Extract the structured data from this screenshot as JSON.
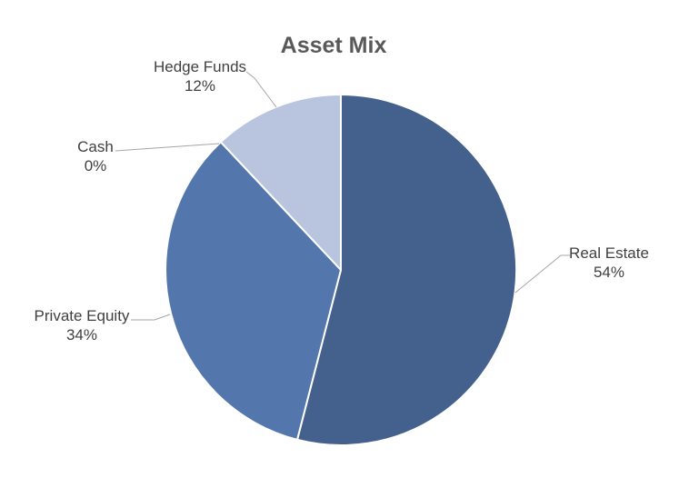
{
  "chart_data": {
    "type": "pie",
    "title": "Asset Mix",
    "title_color": "#595959",
    "label_text_color": "#404040",
    "leader_line_color": "#A6A6A6",
    "background": "#FFFFFF",
    "slice_border_color": "#FFFFFF",
    "start_angle_deg": 0,
    "direction": "clockwise",
    "unit": "%",
    "series": [
      {
        "label": "Real Estate",
        "value": 54,
        "display": "54%",
        "color": "#44618E"
      },
      {
        "label": "Private Equity",
        "value": 34,
        "display": "34%",
        "color": "#5377AC"
      },
      {
        "label": "Cash",
        "value": 0,
        "display": "0%",
        "color": null
      },
      {
        "label": "Hedge Funds",
        "value": 12,
        "display": "12%",
        "color": "#B9C4DE"
      }
    ]
  }
}
